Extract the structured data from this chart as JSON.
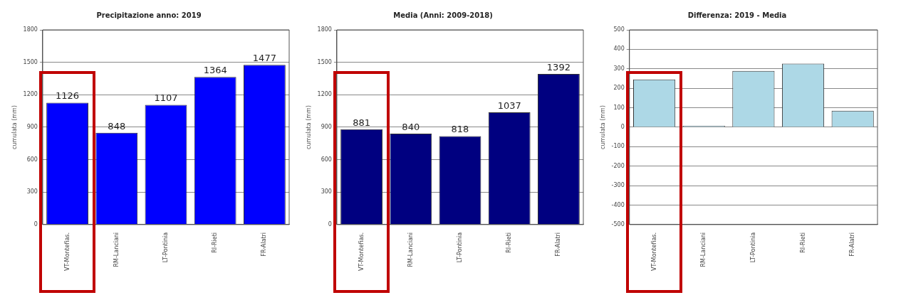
{
  "chart_data": [
    {
      "type": "bar",
      "title": "Precipitazione anno: 2019",
      "ylabel": "cumulata (mm)",
      "categories": [
        "VT-Montefias.",
        "RM-Lanciani",
        "LT-Pontinia",
        "RI-Rieti",
        "FR-Alatri"
      ],
      "values": [
        1126,
        848,
        1107,
        1364,
        1477
      ],
      "color": "#0000ff",
      "ylim": [
        0,
        1800
      ],
      "yticks": [
        0,
        300,
        600,
        900,
        1200,
        1500,
        1800
      ],
      "grid": "y",
      "data_labels": true
    },
    {
      "type": "bar",
      "title": "Media (Anni: 2009-2018)",
      "ylabel": "cumulata (mm)",
      "categories": [
        "VT-Montefias.",
        "RM-Lanciani",
        "LT-Pontinia",
        "RI-Rieti",
        "FR-Alatri"
      ],
      "values": [
        881,
        840,
        818,
        1037,
        1392
      ],
      "color": "#000080",
      "ylim": [
        0,
        1800
      ],
      "yticks": [
        0,
        300,
        600,
        900,
        1200,
        1500,
        1800
      ],
      "grid": "y",
      "data_labels": true
    },
    {
      "type": "bar",
      "title": "Differenza: 2019 - Media",
      "ylabel": "cumulata (mm)",
      "categories": [
        "VT-Montefias.",
        "RM-Lanciani",
        "LT-Pontinia",
        "RI-Rieti",
        "FR-Alatri"
      ],
      "values": [
        245,
        8,
        289,
        327,
        85
      ],
      "color": "#add8e6",
      "ylim": [
        -500,
        500
      ],
      "yticks": [
        -500,
        -400,
        -300,
        -200,
        -100,
        0,
        100,
        200,
        300,
        400,
        500
      ],
      "grid": "y"
    }
  ]
}
